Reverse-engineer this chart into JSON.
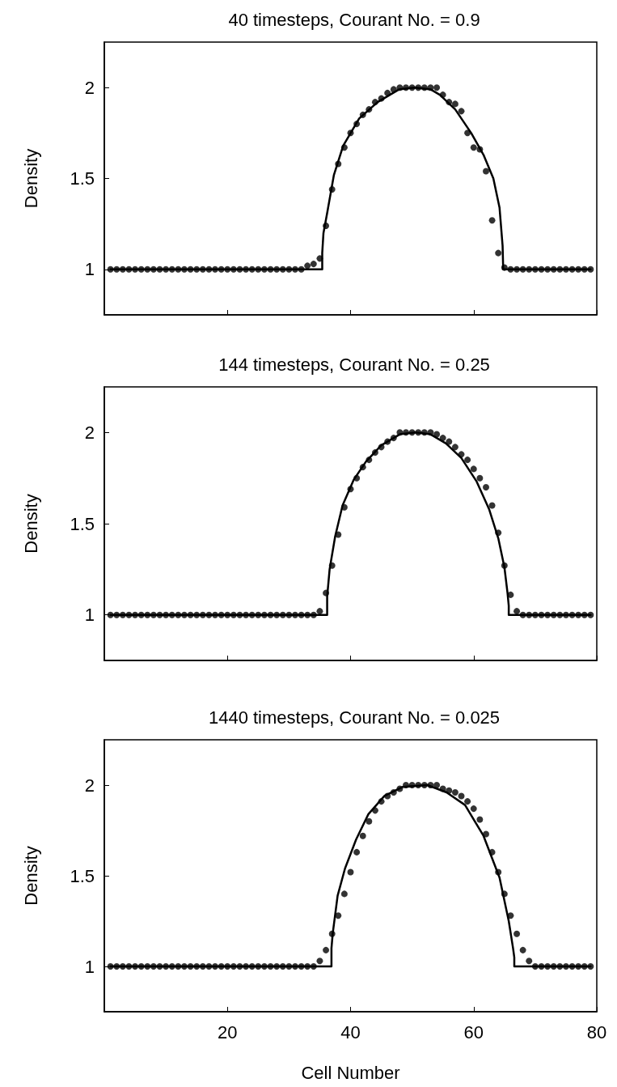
{
  "chart_data": [
    {
      "type": "scatter",
      "title": "40 timesteps, Courant No. = 0.9",
      "ylabel": "Density",
      "xlim": [
        0,
        80
      ],
      "xticks": [
        20,
        40,
        60,
        80
      ],
      "ylim": [
        0.75,
        2.25
      ],
      "yticks": [
        1,
        1.5,
        2
      ],
      "tick_labels": "y",
      "series": [
        {
          "type": "line",
          "color": "#000000",
          "marker": "none",
          "x": [
            1,
            35.4,
            35.4,
            35.6,
            36.2,
            37.3,
            38.8,
            41.4,
            44.4,
            47.9,
            50.5,
            53,
            54.5,
            57,
            59.6,
            61.6,
            63.2,
            64.2,
            64.7,
            64.8,
            79
          ],
          "values": [
            1,
            1,
            1.09,
            1.2,
            1.31,
            1.52,
            1.68,
            1.83,
            1.92,
            1.99,
            2,
            1.99,
            1.96,
            1.88,
            1.75,
            1.63,
            1.5,
            1.34,
            1.13,
            1,
            1
          ]
        },
        {
          "type": "scatter",
          "color": "#000000",
          "marker": "circle",
          "x": [
            1,
            2,
            3,
            4,
            5,
            6,
            7,
            8,
            9,
            10,
            11,
            12,
            13,
            14,
            15,
            16,
            17,
            18,
            19,
            20,
            21,
            22,
            23,
            24,
            25,
            26,
            27,
            28,
            29,
            30,
            31,
            32,
            33,
            34,
            35,
            36,
            37,
            38,
            39,
            40,
            41,
            42,
            43,
            44,
            45,
            46,
            47,
            48,
            49,
            50,
            51,
            52,
            53,
            54,
            55,
            56,
            57,
            58,
            59,
            60,
            61,
            62,
            63,
            64,
            65,
            66,
            67,
            68,
            69,
            70,
            71,
            72,
            73,
            74,
            75,
            76,
            77,
            78,
            79
          ],
          "values": [
            1,
            1,
            1,
            1,
            1,
            1,
            1,
            1,
            1,
            1,
            1,
            1,
            1,
            1,
            1,
            1,
            1,
            1,
            1,
            1,
            1,
            1,
            1,
            1,
            1,
            1,
            1,
            1,
            1,
            1,
            1,
            1,
            1.02,
            1.03,
            1.06,
            1.24,
            1.44,
            1.58,
            1.67,
            1.75,
            1.8,
            1.85,
            1.88,
            1.92,
            1.94,
            1.97,
            1.99,
            2,
            2,
            2,
            2,
            2,
            2,
            2,
            1.96,
            1.92,
            1.91,
            1.87,
            1.75,
            1.67,
            1.66,
            1.54,
            1.27,
            1.09,
            1.01,
            1,
            1,
            1,
            1,
            1,
            1,
            1,
            1,
            1,
            1,
            1,
            1,
            1,
            1
          ]
        }
      ]
    },
    {
      "type": "scatter",
      "title": "144 timesteps, Courant No. = 0.25",
      "ylabel": "Density",
      "xlim": [
        0,
        80
      ],
      "xticks": [
        20,
        40,
        60,
        80
      ],
      "ylim": [
        0.75,
        2.25
      ],
      "yticks": [
        1,
        1.5,
        2
      ],
      "tick_labels": "y",
      "series": [
        {
          "type": "line",
          "color": "#000000",
          "marker": "none",
          "x": [
            1,
            36.2,
            36.2,
            36.6,
            37.5,
            38.7,
            40.5,
            42.5,
            45,
            48,
            50.5,
            53,
            55.5,
            58,
            60.5,
            62.5,
            64,
            65,
            65.5,
            65.7,
            65.7,
            79
          ],
          "values": [
            1,
            1,
            1.1,
            1.25,
            1.43,
            1.6,
            1.74,
            1.84,
            1.93,
            1.99,
            2,
            1.99,
            1.94,
            1.86,
            1.73,
            1.58,
            1.42,
            1.26,
            1.12,
            1.05,
            1,
            1
          ]
        },
        {
          "type": "scatter",
          "color": "#000000",
          "marker": "circle",
          "x": [
            1,
            2,
            3,
            4,
            5,
            6,
            7,
            8,
            9,
            10,
            11,
            12,
            13,
            14,
            15,
            16,
            17,
            18,
            19,
            20,
            21,
            22,
            23,
            24,
            25,
            26,
            27,
            28,
            29,
            30,
            31,
            32,
            33,
            34,
            35,
            36,
            37,
            38,
            39,
            40,
            41,
            42,
            43,
            44,
            45,
            46,
            47,
            48,
            49,
            50,
            51,
            52,
            53,
            54,
            55,
            56,
            57,
            58,
            59,
            60,
            61,
            62,
            63,
            64,
            65,
            66,
            67,
            68,
            69,
            70,
            71,
            72,
            73,
            74,
            75,
            76,
            77,
            78,
            79
          ],
          "values": [
            1,
            1,
            1,
            1,
            1,
            1,
            1,
            1,
            1,
            1,
            1,
            1,
            1,
            1,
            1,
            1,
            1,
            1,
            1,
            1,
            1,
            1,
            1,
            1,
            1,
            1,
            1,
            1,
            1,
            1,
            1,
            1,
            1,
            1,
            1.02,
            1.12,
            1.27,
            1.44,
            1.59,
            1.69,
            1.75,
            1.81,
            1.85,
            1.89,
            1.92,
            1.95,
            1.97,
            2,
            2,
            2,
            2,
            2,
            2,
            1.99,
            1.97,
            1.95,
            1.92,
            1.88,
            1.85,
            1.8,
            1.75,
            1.7,
            1.6,
            1.45,
            1.27,
            1.11,
            1.02,
            1,
            1,
            1,
            1,
            1,
            1,
            1,
            1,
            1,
            1,
            1,
            1
          ]
        }
      ]
    },
    {
      "type": "scatter",
      "title": "1440 timesteps, Courant No. = 0.025",
      "xlabel": "Cell Number",
      "ylabel": "Density",
      "xlim": [
        0,
        80
      ],
      "xticks": [
        20,
        40,
        60,
        80
      ],
      "ylim": [
        0.75,
        2.25
      ],
      "yticks": [
        1,
        1.5,
        2
      ],
      "series": [
        {
          "type": "line",
          "color": "#000000",
          "marker": "none",
          "x": [
            1,
            36.9,
            36.9,
            37.1,
            37.9,
            39.1,
            40.9,
            42.9,
            45.5,
            48.5,
            52.5,
            55.6,
            58.6,
            61.6,
            64.2,
            65.7,
            66.4,
            66.6,
            66.6,
            79
          ],
          "values": [
            1,
            1,
            1.1,
            1.18,
            1.39,
            1.54,
            1.7,
            1.84,
            1.94,
            1.99,
            2,
            1.96,
            1.89,
            1.72,
            1.49,
            1.25,
            1.1,
            1.05,
            1,
            1
          ]
        },
        {
          "type": "scatter",
          "color": "#000000",
          "marker": "circle",
          "x": [
            1,
            2,
            3,
            4,
            5,
            6,
            7,
            8,
            9,
            10,
            11,
            12,
            13,
            14,
            15,
            16,
            17,
            18,
            19,
            20,
            21,
            22,
            23,
            24,
            25,
            26,
            27,
            28,
            29,
            30,
            31,
            32,
            33,
            34,
            35,
            36,
            37,
            38,
            39,
            40,
            41,
            42,
            43,
            44,
            45,
            46,
            47,
            48,
            49,
            50,
            51,
            52,
            53,
            54,
            55,
            56,
            57,
            58,
            59,
            60,
            61,
            62,
            63,
            64,
            65,
            66,
            67,
            68,
            69,
            70,
            71,
            72,
            73,
            74,
            75,
            76,
            77,
            78,
            79
          ],
          "values": [
            1,
            1,
            1,
            1,
            1,
            1,
            1,
            1,
            1,
            1,
            1,
            1,
            1,
            1,
            1,
            1,
            1,
            1,
            1,
            1,
            1,
            1,
            1,
            1,
            1,
            1,
            1,
            1,
            1,
            1,
            1,
            1,
            1,
            1,
            1.03,
            1.09,
            1.18,
            1.28,
            1.4,
            1.52,
            1.63,
            1.72,
            1.8,
            1.86,
            1.91,
            1.94,
            1.96,
            1.98,
            2,
            2,
            2,
            2,
            2,
            2,
            1.98,
            1.97,
            1.96,
            1.94,
            1.91,
            1.87,
            1.81,
            1.73,
            1.63,
            1.52,
            1.4,
            1.28,
            1.18,
            1.09,
            1.03,
            1,
            1,
            1,
            1,
            1,
            1,
            1,
            1,
            1,
            1
          ]
        }
      ]
    }
  ]
}
